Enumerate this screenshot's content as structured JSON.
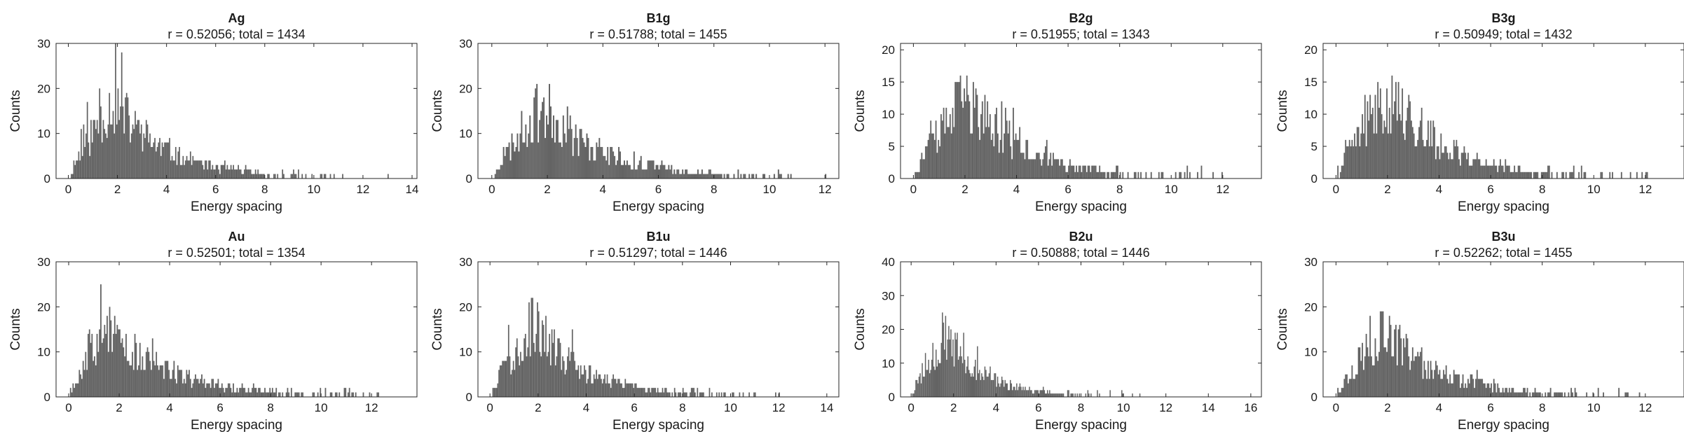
{
  "figure": {
    "panels_per_row": 4,
    "bar_color": "#636363",
    "axis_color": "#262626"
  },
  "chart_data": [
    {
      "type": "bar",
      "title": "Ag",
      "subtitle": "r = 0.52056; total = 1434",
      "xlabel": "Energy spacing",
      "ylabel": "Counts",
      "xlim": [
        -0.5,
        14.2
      ],
      "ylim": [
        0,
        30
      ],
      "xticks": [
        0,
        2,
        4,
        6,
        8,
        10,
        12,
        14
      ],
      "yticks": [
        0,
        10,
        20,
        30
      ],
      "bin_width": 0.05,
      "profile": {
        "peak_x": 1.8,
        "peak": 17,
        "rise": 0.9,
        "decay": 2.2,
        "start_x": 0.0,
        "tail_end": 13.6,
        "seed": 11
      }
    },
    {
      "type": "bar",
      "title": "B1g",
      "subtitle": "r = 0.51788; total = 1455",
      "xlabel": "Energy spacing",
      "ylabel": "Counts",
      "xlim": [
        -0.5,
        12.5
      ],
      "ylim": [
        0,
        30
      ],
      "xticks": [
        0,
        2,
        4,
        6,
        8,
        10,
        12
      ],
      "yticks": [
        0,
        10,
        20,
        30
      ],
      "bin_width": 0.05,
      "profile": {
        "peak_x": 1.8,
        "peak": 16,
        "rise": 0.9,
        "decay": 2.2,
        "start_x": 0.0,
        "tail_end": 12.2,
        "seed": 23
      }
    },
    {
      "type": "bar",
      "title": "B2g",
      "subtitle": "r = 0.51955; total = 1343",
      "xlabel": "Energy spacing",
      "ylabel": "Counts",
      "xlim": [
        -0.5,
        13.5
      ],
      "ylim": [
        0,
        21
      ],
      "xticks": [
        0,
        2,
        4,
        6,
        8,
        10,
        12
      ],
      "yticks": [
        0,
        5,
        10,
        15,
        20
      ],
      "bin_width": 0.05,
      "profile": {
        "peak_x": 2.0,
        "peak": 12.5,
        "rise": 1.0,
        "decay": 2.3,
        "start_x": 0.0,
        "tail_end": 12.2,
        "seed": 37
      }
    },
    {
      "type": "bar",
      "title": "B3g",
      "subtitle": "r = 0.50949; total = 1432",
      "xlabel": "Energy spacing",
      "ylabel": "Counts",
      "xlim": [
        -0.5,
        13.5
      ],
      "ylim": [
        0,
        21
      ],
      "xticks": [
        0,
        2,
        4,
        6,
        8,
        10,
        12
      ],
      "yticks": [
        0,
        5,
        10,
        15,
        20
      ],
      "bin_width": 0.05,
      "profile": {
        "peak_x": 2.0,
        "peak": 13,
        "rise": 1.0,
        "decay": 2.3,
        "start_x": 0.0,
        "tail_end": 12.5,
        "seed": 41
      }
    },
    {
      "type": "bar",
      "title": "Au",
      "subtitle": "r = 0.52501; total = 1354",
      "xlabel": "Energy spacing",
      "ylabel": "Counts",
      "xlim": [
        -0.5,
        13.8
      ],
      "ylim": [
        0,
        30
      ],
      "xticks": [
        0,
        2,
        4,
        6,
        8,
        10,
        12
      ],
      "yticks": [
        0,
        10,
        20,
        30
      ],
      "bin_width": 0.05,
      "profile": {
        "peak_x": 1.5,
        "peak": 15,
        "rise": 0.8,
        "decay": 2.6,
        "start_x": 0.0,
        "tail_end": 13.0,
        "seed": 53
      }
    },
    {
      "type": "bar",
      "title": "B1u",
      "subtitle": "r = 0.51297; total = 1446",
      "xlabel": "Energy spacing",
      "ylabel": "Counts",
      "xlim": [
        -0.5,
        14.5
      ],
      "ylim": [
        0,
        30
      ],
      "xticks": [
        0,
        2,
        4,
        6,
        8,
        10,
        12,
        14
      ],
      "yticks": [
        0,
        10,
        20,
        30
      ],
      "bin_width": 0.05,
      "profile": {
        "peak_x": 1.8,
        "peak": 16,
        "rise": 0.9,
        "decay": 2.1,
        "start_x": 0.0,
        "tail_end": 13.0,
        "seed": 67
      }
    },
    {
      "type": "bar",
      "title": "B2u",
      "subtitle": "r = 0.50888; total = 1446",
      "xlabel": "Energy spacing",
      "ylabel": "Counts",
      "xlim": [
        -0.5,
        16.5
      ],
      "ylim": [
        0,
        40
      ],
      "xticks": [
        0,
        2,
        4,
        6,
        8,
        10,
        12,
        14,
        16
      ],
      "yticks": [
        0,
        10,
        20,
        30,
        40
      ],
      "bin_width": 0.05,
      "profile": {
        "peak_x": 1.5,
        "peak": 18,
        "rise": 0.8,
        "decay": 1.9,
        "start_x": 0.0,
        "tail_end": 15.0,
        "seed": 79
      }
    },
    {
      "type": "bar",
      "title": "B3u",
      "subtitle": "r = 0.52262; total = 1455",
      "xlabel": "Energy spacing",
      "ylabel": "Counts",
      "xlim": [
        -0.5,
        13.5
      ],
      "ylim": [
        0,
        30
      ],
      "xticks": [
        0,
        2,
        4,
        6,
        8,
        10,
        12
      ],
      "yticks": [
        0,
        10,
        20,
        30
      ],
      "bin_width": 0.05,
      "profile": {
        "peak_x": 1.8,
        "peak": 15,
        "rise": 0.9,
        "decay": 2.2,
        "start_x": 0.0,
        "tail_end": 12.6,
        "seed": 97
      }
    }
  ]
}
